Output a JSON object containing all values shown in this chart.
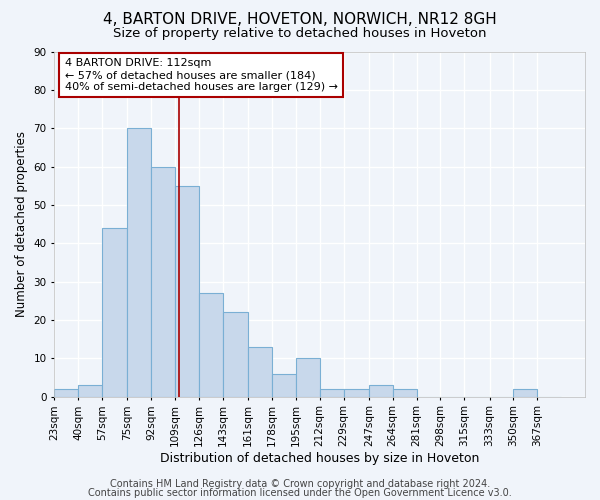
{
  "title1": "4, BARTON DRIVE, HOVETON, NORWICH, NR12 8GH",
  "title2": "Size of property relative to detached houses in Hoveton",
  "xlabel": "Distribution of detached houses by size in Hoveton",
  "ylabel": "Number of detached properties",
  "bar_labels": [
    "23sqm",
    "40sqm",
    "57sqm",
    "75sqm",
    "92sqm",
    "109sqm",
    "126sqm",
    "143sqm",
    "161sqm",
    "178sqm",
    "195sqm",
    "212sqm",
    "229sqm",
    "247sqm",
    "264sqm",
    "281sqm",
    "298sqm",
    "315sqm",
    "333sqm",
    "350sqm",
    "367sqm"
  ],
  "bar_values": [
    2,
    3,
    44,
    70,
    60,
    55,
    27,
    22,
    13,
    6,
    10,
    2,
    2,
    3,
    2,
    0,
    0,
    0,
    0,
    2,
    0
  ],
  "bar_color": "#c8d8eb",
  "bar_edge_color": "#7aafd4",
  "vline_x": 112,
  "vline_color": "#aa0000",
  "bin_edges": [
    23,
    40,
    57,
    75,
    92,
    109,
    126,
    143,
    161,
    178,
    195,
    212,
    229,
    247,
    264,
    281,
    298,
    315,
    333,
    350,
    367,
    384
  ],
  "annotation_line1": "4 BARTON DRIVE: 112sqm",
  "annotation_line2": "← 57% of detached houses are smaller (184)",
  "annotation_line3": "40% of semi-detached houses are larger (129) →",
  "annotation_box_color": "#ffffff",
  "annotation_box_edge_color": "#aa0000",
  "ylim": [
    0,
    90
  ],
  "yticks": [
    0,
    10,
    20,
    30,
    40,
    50,
    60,
    70,
    80,
    90
  ],
  "footer1": "Contains HM Land Registry data © Crown copyright and database right 2024.",
  "footer2": "Contains public sector information licensed under the Open Government Licence v3.0.",
  "bg_color": "#f0f4fa",
  "plot_bg_color": "#f0f4fa",
  "grid_color": "#ffffff",
  "title1_fontsize": 11,
  "title2_fontsize": 9.5,
  "annotation_fontsize": 8,
  "ylabel_fontsize": 8.5,
  "xlabel_fontsize": 9,
  "footer_fontsize": 7,
  "tick_fontsize": 7.5
}
